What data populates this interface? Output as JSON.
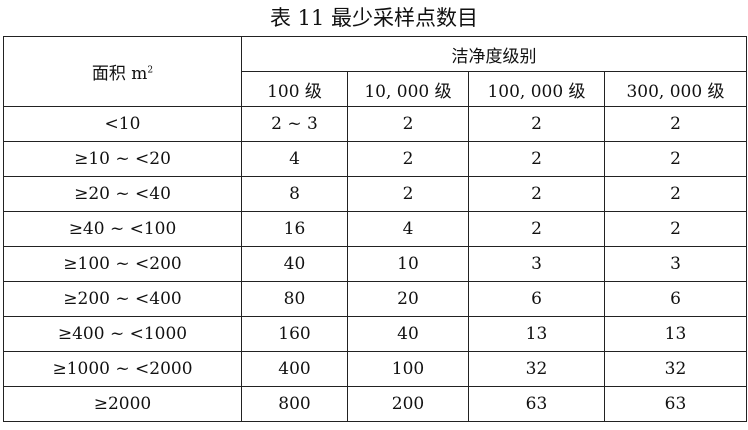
{
  "title": "表 11  最少采样点数目",
  "header": {
    "area_label": "面积 m",
    "area_unit_sup": "2",
    "class_group": "洁净度级别",
    "classes": [
      "100 级",
      "10, 000 级",
      "100, 000 级",
      "300, 000 级"
    ]
  },
  "rows": [
    {
      "area": "<10",
      "values": [
        "2 ~ 3",
        "2",
        "2",
        "2"
      ]
    },
    {
      "area": "≥10 ~ <20",
      "values": [
        "4",
        "2",
        "2",
        "2"
      ]
    },
    {
      "area": "≥20 ~ <40",
      "values": [
        "8",
        "2",
        "2",
        "2"
      ]
    },
    {
      "area": "≥40 ~ <100",
      "values": [
        "16",
        "4",
        "2",
        "2"
      ]
    },
    {
      "area": "≥100 ~ <200",
      "values": [
        "40",
        "10",
        "3",
        "3"
      ]
    },
    {
      "area": "≥200 ~ <400",
      "values": [
        "80",
        "20",
        "6",
        "6"
      ]
    },
    {
      "area": "≥400 ~ <1000",
      "values": [
        "160",
        "40",
        "13",
        "13"
      ]
    },
    {
      "area": "≥1000 ~ <2000",
      "values": [
        "400",
        "100",
        "32",
        "32"
      ]
    },
    {
      "area": "≥2000",
      "values": [
        "800",
        "200",
        "63",
        "63"
      ]
    }
  ]
}
